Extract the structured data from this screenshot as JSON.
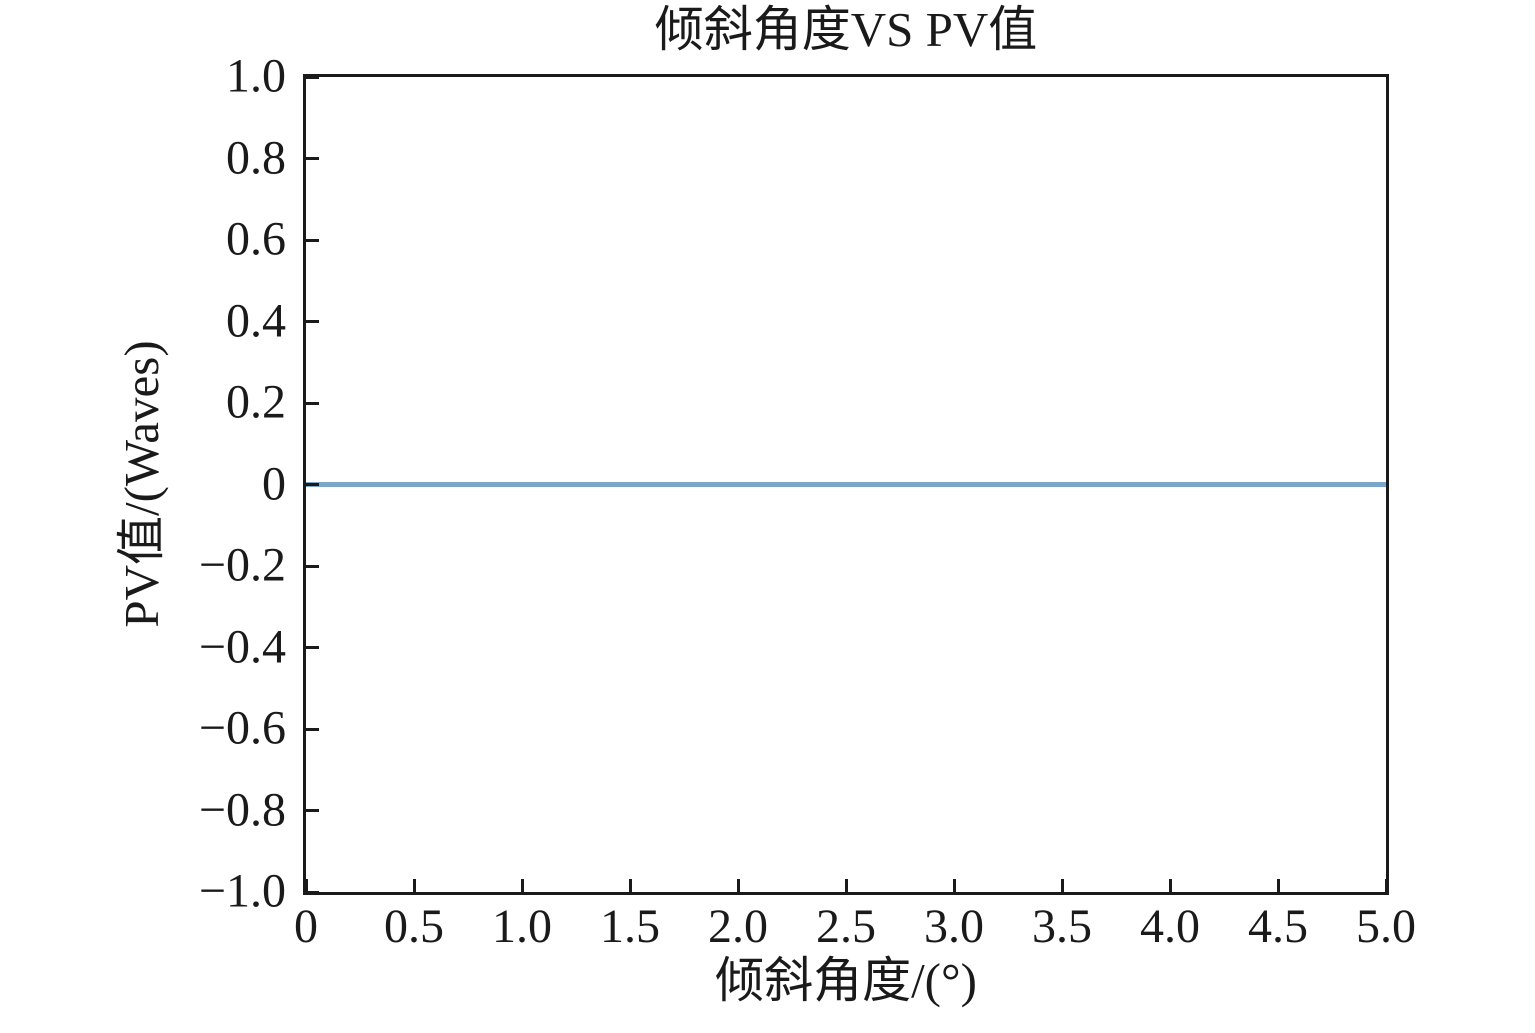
{
  "colors": {
    "axis": "#1a1a1a",
    "text": "#1a1a1a",
    "background": "#ffffff",
    "line": "#7aa6c8"
  },
  "chart_data": {
    "type": "line",
    "title": "倾斜角度VS PV值",
    "xlabel": "倾斜角度/(°)",
    "ylabel": "PV值/(Waves)",
    "xlim": [
      0,
      5
    ],
    "ylim": [
      -1,
      1
    ],
    "grid": false,
    "legend": null,
    "xticks": {
      "values": [
        0,
        0.5,
        1.0,
        1.5,
        2.0,
        2.5,
        3.0,
        3.5,
        4.0,
        4.5,
        5.0
      ],
      "labels": [
        "0",
        "0.5",
        "1.0",
        "1.5",
        "2.0",
        "2.5",
        "3.0",
        "3.5",
        "4.0",
        "4.5",
        "5.0"
      ]
    },
    "yticks": {
      "values": [
        1.0,
        0.8,
        0.6,
        0.4,
        0.2,
        0,
        -0.2,
        -0.4,
        -0.6,
        -0.8,
        -1.0
      ],
      "labels": [
        "1.0",
        "0.8",
        "0.6",
        "0.4",
        "0.2",
        "0",
        "−0.2",
        "−0.4",
        "−0.6",
        "−0.8",
        "−1.0"
      ]
    },
    "series": [
      {
        "name": "pv-vs-tilt",
        "color": "#7aa6c8",
        "line_width": 5,
        "x": [
          0,
          0.5,
          1.0,
          1.5,
          2.0,
          2.5,
          3.0,
          3.5,
          4.0,
          4.5,
          5.0
        ],
        "y": [
          0,
          0,
          0,
          0,
          0,
          0,
          0,
          0,
          0,
          0,
          0
        ]
      }
    ]
  }
}
